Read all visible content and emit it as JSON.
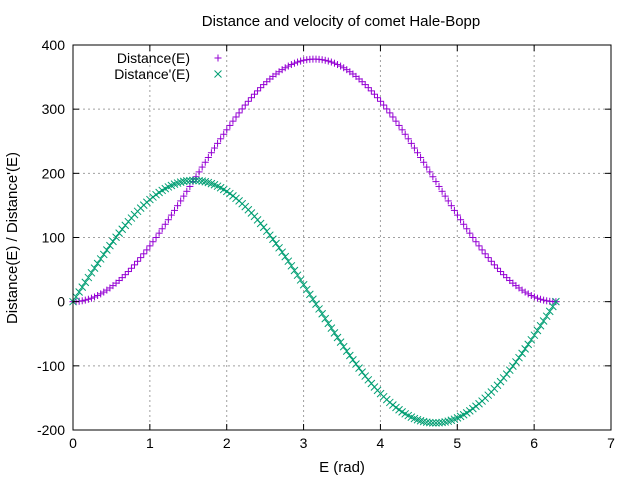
{
  "chart_data": {
    "type": "scatter",
    "title": "Distance and velocity of comet Hale-Bopp",
    "xlabel": "E (rad)",
    "ylabel": "Distance(E) / Distance'(E)",
    "xlim": [
      0,
      7
    ],
    "ylim": [
      -200,
      400
    ],
    "x_ticks": [
      0,
      1,
      2,
      3,
      4,
      5,
      6,
      7
    ],
    "y_ticks": [
      -200,
      -100,
      0,
      100,
      200,
      300,
      400
    ],
    "grid": true,
    "legend_position": "top-left",
    "x_sampling": {
      "start": 0,
      "end": 6.2832,
      "count": 158
    },
    "series": [
      {
        "name": "Distance(E)",
        "marker": "plus",
        "color": "#9400d3",
        "formula": "a*(1 - e*cos(E))",
        "a": 189,
        "e": 1
      },
      {
        "name": "Distance'(E)",
        "marker": "cross",
        "color": "#009e73",
        "formula": "a*e*sin(E)",
        "a": 189,
        "e": 1
      }
    ]
  }
}
